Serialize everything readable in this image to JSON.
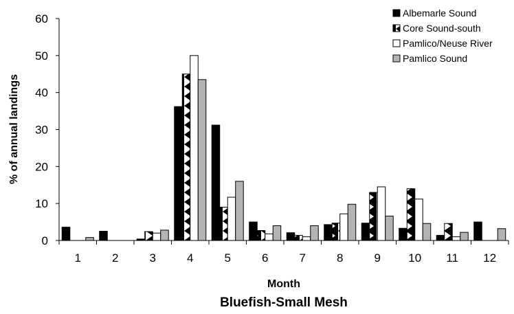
{
  "chart_data": {
    "type": "bar",
    "title": "Bluefish-Small Mesh",
    "xlabel": "Month",
    "ylabel": "% of annual landings",
    "ylim": [
      0,
      60
    ],
    "yticks": [
      "0",
      "10",
      "20",
      "30",
      "40",
      "50",
      "60"
    ],
    "categories": [
      "1",
      "2",
      "3",
      "4",
      "5",
      "6",
      "7",
      "8",
      "9",
      "10",
      "11",
      "12"
    ],
    "grid": false,
    "legend_position": "top-right",
    "series": [
      {
        "name": "Albemarle Sound",
        "values": [
          3.6,
          2.5,
          0.4,
          36.2,
          31.2,
          5.0,
          2.1,
          4.3,
          4.7,
          3.3,
          1.4,
          5.0
        ],
        "fill": "#000000"
      },
      {
        "name": "Core Sound-south",
        "values": [
          0,
          0,
          2.4,
          45.0,
          9.0,
          2.7,
          1.4,
          4.7,
          13.0,
          14.0,
          4.6,
          0
        ],
        "fill": "pattern"
      },
      {
        "name": "Pamlico/Neuse River",
        "values": [
          0,
          0,
          2.0,
          50.0,
          11.7,
          1.8,
          1.0,
          7.2,
          14.5,
          11.2,
          1.0,
          0
        ],
        "fill": "#ffffff"
      },
      {
        "name": "Pamlico Sound",
        "values": [
          0.8,
          0,
          2.8,
          43.5,
          16.0,
          4.0,
          4.0,
          9.8,
          6.6,
          4.6,
          2.2,
          3.2
        ],
        "fill": "#b3b3b3"
      }
    ]
  }
}
